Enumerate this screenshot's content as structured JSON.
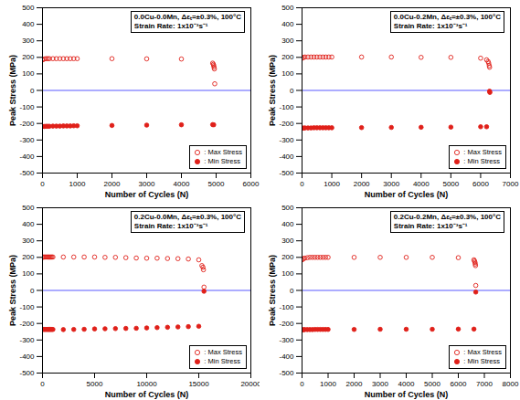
{
  "chart_data": [
    {
      "type": "scatter",
      "annotations": [
        "0.0Cu-0.0Mn, Δεₜ=±0.3%, 100°C",
        "Strain Rate: 1x10⁻³s⁻¹"
      ],
      "x_label": "Number of Cycles (N)",
      "y_label": "Peak Stress (MPa)",
      "xlim": [
        0,
        6000
      ],
      "xticks": [
        0,
        1000,
        2000,
        3000,
        4000,
        5000,
        6000
      ],
      "ylim": [
        -500,
        500
      ],
      "yticks": [
        -500,
        -400,
        -300,
        -200,
        -100,
        0,
        100,
        200,
        300,
        400,
        500
      ],
      "grid": false,
      "legend": "bottom-right",
      "hline": {
        "y": 0,
        "color": "#5a5aff"
      },
      "series": [
        {
          "name": ": Max Stress",
          "color": "#e0201a",
          "marker": "open",
          "x": [
            5,
            50,
            100,
            150,
            200,
            300,
            400,
            500,
            600,
            700,
            800,
            900,
            1000,
            2000,
            3000,
            4000,
            4900,
            4920,
            4930,
            4940,
            4950,
            4960
          ],
          "values": [
            185,
            190,
            192,
            192,
            192,
            192,
            192,
            192,
            192,
            192,
            192,
            192,
            192,
            192,
            191,
            190,
            165,
            158,
            150,
            140,
            130,
            40
          ]
        },
        {
          "name": ": Min Stress",
          "color": "#e0201a",
          "marker": "filled",
          "x": [
            5,
            50,
            100,
            150,
            200,
            300,
            400,
            500,
            600,
            700,
            800,
            900,
            1000,
            2000,
            3000,
            4000,
            4900,
            4930
          ],
          "values": [
            -218,
            -218,
            -217,
            -217,
            -217,
            -216,
            -216,
            -216,
            -215,
            -215,
            -215,
            -214,
            -214,
            -212,
            -210,
            -208,
            -207,
            -208
          ]
        }
      ]
    },
    {
      "type": "scatter",
      "annotations": [
        "0.0Cu-0.2Mn, Δεₜ=±0.3%, 100°C",
        "Strain Rate: 1x10⁻³s⁻¹"
      ],
      "x_label": "Number of Cycles (N)",
      "y_label": "Peak Stress (MPa)",
      "xlim": [
        0,
        7000
      ],
      "xticks": [
        0,
        1000,
        2000,
        3000,
        4000,
        5000,
        6000,
        7000
      ],
      "ylim": [
        -500,
        500
      ],
      "yticks": [
        -500,
        -400,
        -300,
        -200,
        -100,
        0,
        100,
        200,
        300,
        400,
        500
      ],
      "grid": false,
      "legend": "bottom-right",
      "hline": {
        "y": 0,
        "color": "#5a5aff"
      },
      "series": [
        {
          "name": ": Max Stress",
          "color": "#e0201a",
          "marker": "open",
          "x": [
            5,
            50,
            100,
            200,
            300,
            400,
            500,
            600,
            700,
            800,
            900,
            1000,
            2000,
            3000,
            4000,
            5000,
            6000,
            6200,
            6250,
            6270,
            6290,
            6300
          ],
          "values": [
            195,
            200,
            202,
            202,
            202,
            202,
            202,
            202,
            202,
            202,
            202,
            202,
            202,
            202,
            200,
            200,
            195,
            185,
            175,
            165,
            150,
            140
          ]
        },
        {
          "name": ": Min Stress",
          "color": "#e0201a",
          "marker": "filled",
          "x": [
            5,
            50,
            100,
            200,
            300,
            400,
            500,
            600,
            700,
            800,
            900,
            1000,
            2000,
            3000,
            4000,
            5000,
            6000,
            6200,
            6300,
            6310
          ],
          "values": [
            -228,
            -228,
            -227,
            -227,
            -227,
            -226,
            -226,
            -226,
            -226,
            -226,
            -226,
            -226,
            -225,
            -224,
            -223,
            -222,
            -220,
            -220,
            -5,
            -12
          ]
        }
      ]
    },
    {
      "type": "scatter",
      "annotations": [
        "0.2Cu-0.0Mn, Δεₜ=±0.3%, 100°C",
        "Strain Rate: 1x10⁻³s⁻¹"
      ],
      "x_label": "Number of Cycles (N)",
      "y_label": "Peak Stress (MPa)",
      "xlim": [
        0,
        20000
      ],
      "xticks": [
        0,
        5000,
        10000,
        15000,
        20000
      ],
      "ylim": [
        -500,
        500
      ],
      "yticks": [
        -500,
        -400,
        -300,
        -200,
        -100,
        0,
        100,
        200,
        300,
        400,
        500
      ],
      "grid": false,
      "legend": "bottom-right",
      "hline": {
        "y": 0,
        "color": "#5a5aff"
      },
      "series": [
        {
          "name": ": Max Stress",
          "color": "#e0201a",
          "marker": "open",
          "x": [
            5,
            100,
            200,
            300,
            400,
            500,
            600,
            700,
            800,
            900,
            1000,
            2000,
            3000,
            4000,
            5000,
            6000,
            7000,
            8000,
            9000,
            10000,
            11000,
            12000,
            13000,
            14000,
            15000,
            15300,
            15400,
            15450,
            15500
          ],
          "values": [
            200,
            202,
            202,
            202,
            202,
            202,
            202,
            202,
            202,
            202,
            202,
            202,
            202,
            202,
            202,
            200,
            200,
            198,
            196,
            195,
            195,
            193,
            192,
            190,
            185,
            150,
            140,
            125,
            20
          ]
        },
        {
          "name": ": Min Stress",
          "color": "#e0201a",
          "marker": "filled",
          "x": [
            5,
            100,
            200,
            300,
            400,
            500,
            600,
            700,
            800,
            900,
            1000,
            2000,
            3000,
            4000,
            5000,
            6000,
            7000,
            8000,
            9000,
            10000,
            11000,
            12000,
            13000,
            14000,
            15000,
            15500
          ],
          "values": [
            -235,
            -236,
            -236,
            -236,
            -236,
            -236,
            -236,
            -236,
            -236,
            -236,
            -236,
            -237,
            -236,
            -235,
            -233,
            -232,
            -231,
            -230,
            -229,
            -227,
            -225,
            -223,
            -221,
            -219,
            -217,
            -5
          ]
        }
      ]
    },
    {
      "type": "scatter",
      "annotations": [
        "0.2Cu-0.2Mn, Δεₜ=±0.3%, 100°C",
        "Strain Rate: 1x10⁻³s⁻¹"
      ],
      "x_label": "Number of Cycles (N)",
      "y_label": "Peak Stress (MPa)",
      "xlim": [
        0,
        8000
      ],
      "xticks": [
        0,
        1000,
        2000,
        3000,
        4000,
        5000,
        6000,
        7000,
        8000
      ],
      "ylim": [
        -500,
        500
      ],
      "yticks": [
        -500,
        -400,
        -300,
        -200,
        -100,
        0,
        100,
        200,
        300,
        400,
        500
      ],
      "grid": false,
      "legend": "bottom-right",
      "hline": {
        "y": 0,
        "color": "#5a5aff"
      },
      "series": [
        {
          "name": ": Max Stress",
          "color": "#e0201a",
          "marker": "open",
          "x": [
            5,
            50,
            100,
            200,
            300,
            400,
            500,
            600,
            700,
            800,
            900,
            1000,
            2000,
            3000,
            4000,
            5000,
            6000,
            6600,
            6620,
            6640,
            6650,
            6660,
            6670
          ],
          "values": [
            185,
            192,
            195,
            198,
            200,
            200,
            200,
            200,
            200,
            200,
            200,
            200,
            200,
            200,
            200,
            200,
            198,
            185,
            178,
            170,
            160,
            150,
            30
          ]
        },
        {
          "name": ": Min Stress",
          "color": "#e0201a",
          "marker": "filled",
          "x": [
            5,
            50,
            100,
            200,
            300,
            400,
            500,
            600,
            700,
            800,
            900,
            1000,
            2000,
            3000,
            4000,
            5000,
            6000,
            6600,
            6670
          ],
          "values": [
            -238,
            -238,
            -237,
            -237,
            -237,
            -237,
            -236,
            -236,
            -236,
            -236,
            -236,
            -236,
            -236,
            -235,
            -235,
            -235,
            -234,
            -234,
            -10
          ]
        }
      ]
    }
  ]
}
